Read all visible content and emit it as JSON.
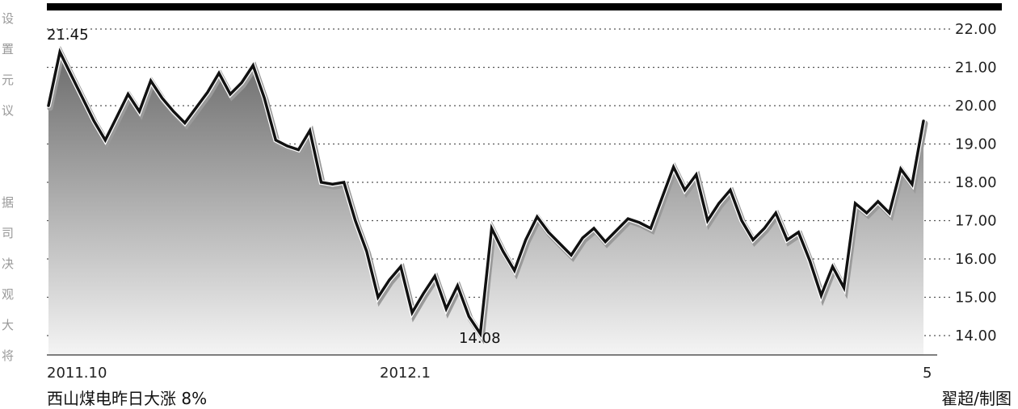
{
  "chart_data": {
    "type": "area",
    "title": "",
    "xlabel": "",
    "ylabel": "",
    "ylim": [
      14,
      22
    ],
    "yticks": [
      "14.00",
      "15.00",
      "16.00",
      "17.00",
      "18.00",
      "19.00",
      "20.00",
      "21.00",
      "22.00"
    ],
    "xtick_labels": [
      "2011.10",
      "2012.1",
      "5"
    ],
    "grid": "horizontal dotted",
    "series": [
      {
        "values": [
          20.0,
          21.4,
          20.8,
          20.2,
          19.6,
          19.1,
          19.7,
          20.3,
          19.85,
          20.65,
          20.2,
          19.85,
          19.55,
          19.95,
          20.35,
          20.85,
          20.3,
          20.6,
          21.05,
          20.2,
          19.1,
          18.95,
          18.85,
          19.35,
          18.0,
          17.95,
          18.0,
          17.0,
          16.2,
          15.0,
          15.45,
          15.8,
          14.6,
          15.1,
          15.55,
          14.7,
          15.3,
          14.5,
          14.05,
          16.8,
          16.2,
          15.7,
          16.5,
          17.1,
          16.7,
          16.4,
          16.1,
          16.55,
          16.8,
          16.45,
          16.75,
          17.05,
          16.95,
          16.8,
          17.6,
          18.4,
          17.8,
          18.2,
          17.0,
          17.45,
          17.8,
          17.0,
          16.5,
          16.8,
          17.2,
          16.5,
          16.7,
          15.95,
          15.05,
          15.8,
          15.25,
          17.45,
          17.2,
          17.5,
          17.2,
          18.35,
          17.95,
          19.6
        ]
      }
    ],
    "annotations": [
      {
        "text": "21.45",
        "label": "high"
      },
      {
        "text": "14.08",
        "label": "low"
      }
    ]
  },
  "captions": {
    "left": "西山煤电昨日大涨 8%",
    "right": "翟超/制图"
  },
  "side_text": {
    "top": "设置元议",
    "bottom": "据司决观大将"
  },
  "colors": {
    "line": "#111111",
    "fill_top": "#6b6b6b",
    "fill_bottom": "#f2f2f2",
    "frame": "#000000"
  }
}
